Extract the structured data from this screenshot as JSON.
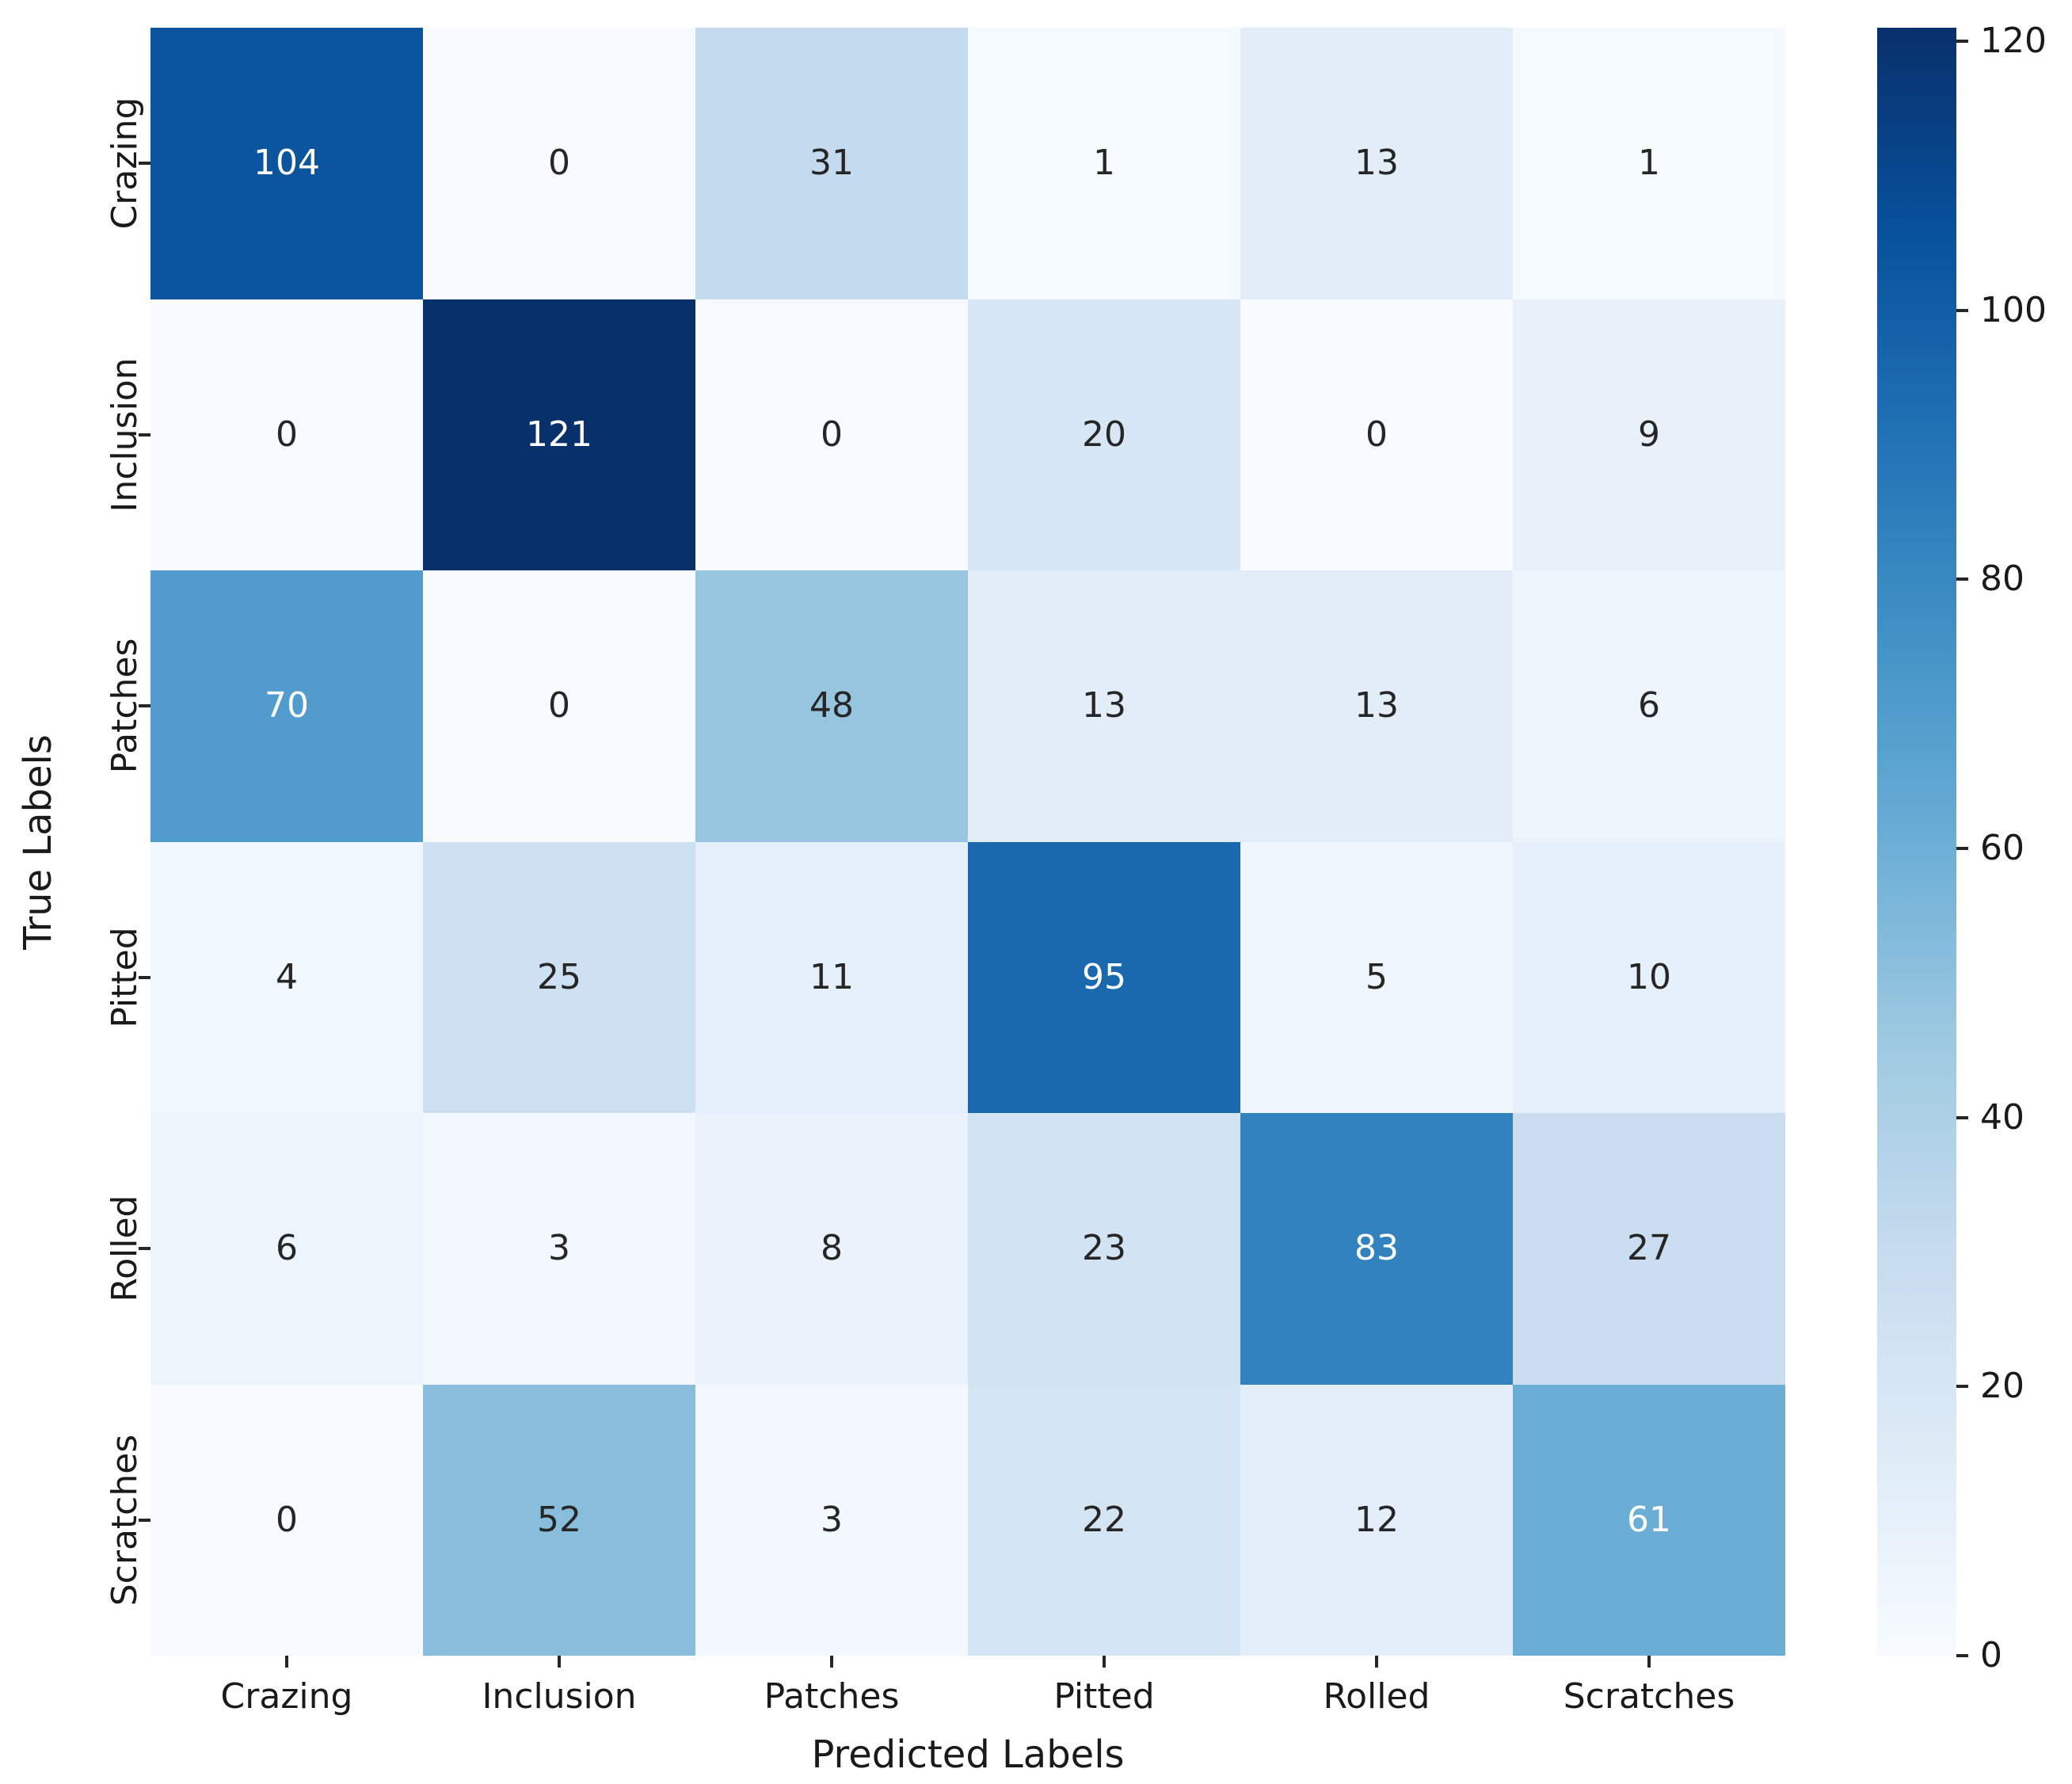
{
  "chart_data": {
    "type": "heatmap",
    "title": "",
    "xlabel": "Predicted Labels",
    "ylabel": "True Labels",
    "categories": [
      "Crazing",
      "Inclusion",
      "Patches",
      "Pitted",
      "Rolled",
      "Scratches"
    ],
    "rows": [
      "Crazing",
      "Inclusion",
      "Patches",
      "Pitted",
      "Rolled",
      "Scratches"
    ],
    "matrix": [
      [
        104,
        0,
        31,
        1,
        13,
        1
      ],
      [
        0,
        121,
        0,
        20,
        0,
        9
      ],
      [
        70,
        0,
        48,
        13,
        13,
        6
      ],
      [
        4,
        25,
        11,
        95,
        5,
        10
      ],
      [
        6,
        3,
        8,
        23,
        83,
        27
      ],
      [
        0,
        52,
        3,
        22,
        12,
        61
      ]
    ],
    "colormap": "Blues",
    "vmin": 0,
    "vmax": 121,
    "colorbar_ticks": [
      0,
      20,
      40,
      60,
      80,
      100,
      120
    ],
    "legend_position": "right-colorbar",
    "grid": false,
    "colors": {
      "background": "#ffffff",
      "low": "#f7fbff",
      "high": "#08306b",
      "dark_text": "#262626",
      "light_text": "#ffffff",
      "tick_text": "#1a1a1a"
    },
    "blues_stops": [
      "#f7fbff",
      "#deebf7",
      "#c6dbef",
      "#9ecae1",
      "#6baed6",
      "#4292c6",
      "#2171b5",
      "#08519c",
      "#08306b"
    ]
  }
}
